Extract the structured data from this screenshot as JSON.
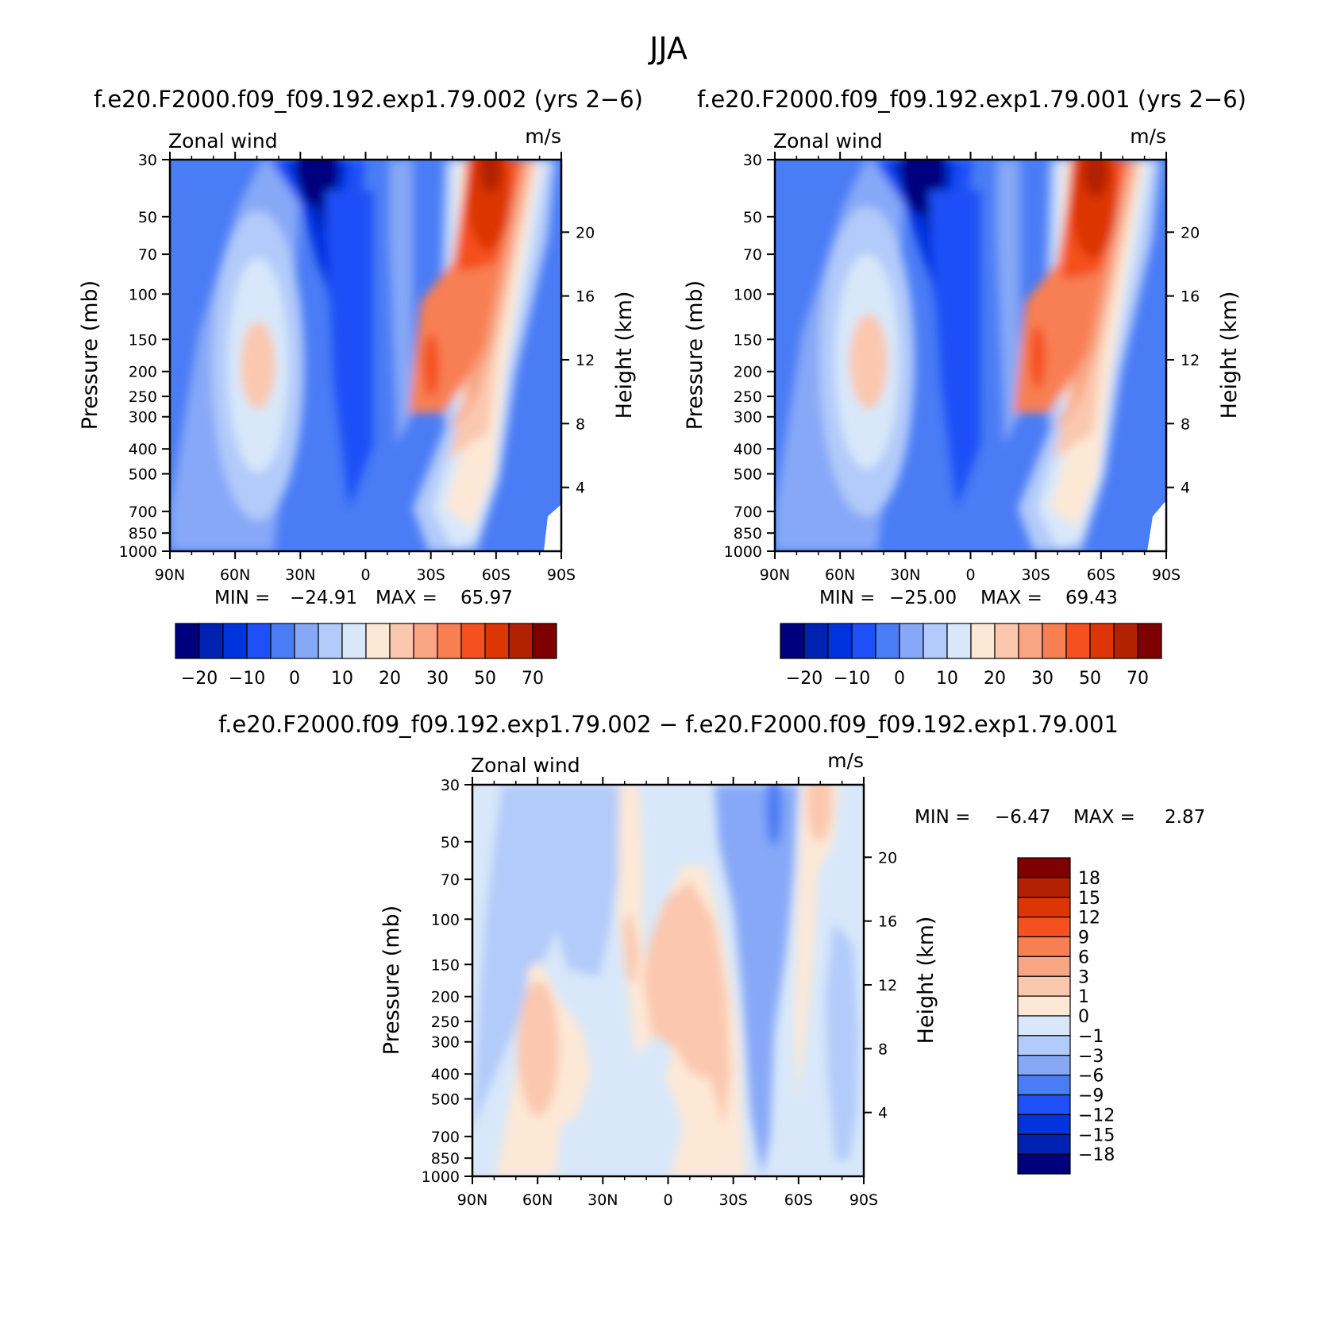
{
  "figure": {
    "title": "JJA",
    "diff_title": "f.e20.F2000.f09_f09.192.exp1.79.002 − f.e20.F2000.f09_f09.192.exp1.79.001",
    "variable": "Zonal wind",
    "units": "m/s"
  },
  "chart_data": [
    {
      "type": "heatmap",
      "name": "panel-1",
      "subtitle": "f.e20.F2000.f09_f09.192.exp1.79.002 (yrs 2−6)",
      "variable": "Zonal wind",
      "units": "m/s",
      "xlabel": "",
      "ylabel": "Pressure (mb)",
      "ylabel_right": "Height (km)",
      "x_ticks": [
        "90N",
        "60N",
        "30N",
        "0",
        "30S",
        "60S",
        "90S"
      ],
      "y_ticks": [
        30,
        50,
        70,
        100,
        150,
        200,
        250,
        300,
        400,
        500,
        700,
        850,
        1000
      ],
      "height_ticks": [
        4,
        8,
        12,
        16,
        20
      ],
      "ylim": [
        1000,
        30
      ],
      "y_scale": "log",
      "min_label": "MIN =",
      "min_value": "−24.91",
      "max_label": "MAX =",
      "max_value": "65.97",
      "colorbar": {
        "orientation": "horizontal",
        "labels": [
          "−20",
          "−10",
          "0",
          "10",
          "20",
          "30",
          "50",
          "70"
        ],
        "colors": [
          "#00007f",
          "#0022b3",
          "#0033dd",
          "#1f4ff7",
          "#4a7cf5",
          "#86a8f7",
          "#b3cbfa",
          "#d8e8fa",
          "#fde8d6",
          "#fbc7ae",
          "#f8a584",
          "#f87f52",
          "#f5501f",
          "#dc3506",
          "#b22202",
          "#7e0000"
        ]
      },
      "fields": [
        {
          "lat": 50,
          "p": 200,
          "level": 3,
          "sx": 18,
          "sy": 0.8
        },
        {
          "lat": 50,
          "p": 200,
          "level": 2,
          "sx": 12,
          "sy": 0.5
        },
        {
          "lat": 50,
          "p": 200,
          "level": 1,
          "sx": 6,
          "sy": 0.22
        },
        {
          "lat": -30,
          "p": 120,
          "level": 5,
          "sx": 20,
          "sy": 1.4
        },
        {
          "lat": -40,
          "p": 150,
          "level": 4,
          "sx": 14,
          "sy": 0.9
        },
        {
          "lat": -45,
          "p": 30,
          "level": 4,
          "sx": 12,
          "sy": 0.9
        },
        {
          "lat": -60,
          "p": 30,
          "level": 2,
          "sx": 5,
          "sy": 0.25
        }
      ]
    },
    {
      "type": "heatmap",
      "name": "panel-2",
      "subtitle": "f.e20.F2000.f09_f09.192.exp1.79.001 (yrs 2−6)",
      "variable": "Zonal wind",
      "units": "m/s",
      "xlabel": "",
      "ylabel": "Pressure (mb)",
      "ylabel_right": "Height (km)",
      "x_ticks": [
        "90N",
        "60N",
        "30N",
        "0",
        "30S",
        "60S",
        "90S"
      ],
      "y_ticks": [
        30,
        50,
        70,
        100,
        150,
        200,
        250,
        300,
        400,
        500,
        700,
        850,
        1000
      ],
      "height_ticks": [
        4,
        8,
        12,
        16,
        20
      ],
      "ylim": [
        1000,
        30
      ],
      "y_scale": "log",
      "min_label": "MIN =",
      "min_value": "−25.00",
      "max_label": "MAX =",
      "max_value": "69.43",
      "colorbar": {
        "orientation": "horizontal",
        "labels": [
          "−20",
          "−10",
          "0",
          "10",
          "20",
          "30",
          "50",
          "70"
        ],
        "colors": [
          "#00007f",
          "#0022b3",
          "#0033dd",
          "#1f4ff7",
          "#4a7cf5",
          "#86a8f7",
          "#b3cbfa",
          "#d8e8fa",
          "#fde8d6",
          "#fbc7ae",
          "#f8a584",
          "#f87f52",
          "#f5501f",
          "#dc3506",
          "#b22202",
          "#7e0000"
        ]
      }
    },
    {
      "type": "heatmap",
      "name": "panel-diff",
      "variable": "Zonal wind",
      "units": "m/s",
      "xlabel": "",
      "ylabel": "Pressure (mb)",
      "ylabel_right": "Height (km)",
      "x_ticks": [
        "90N",
        "60N",
        "30N",
        "0",
        "30S",
        "60S",
        "90S"
      ],
      "y_ticks": [
        30,
        50,
        70,
        100,
        150,
        200,
        250,
        300,
        400,
        500,
        700,
        850,
        1000
      ],
      "height_ticks": [
        4,
        8,
        12,
        16,
        20
      ],
      "ylim": [
        1000,
        30
      ],
      "y_scale": "log",
      "min_label": "MIN =",
      "min_value": "−6.47",
      "max_label": "MAX =",
      "max_value": "2.87",
      "colorbar": {
        "orientation": "vertical",
        "labels": [
          "18",
          "15",
          "12",
          "9",
          "6",
          "3",
          "1",
          "0",
          "−1",
          "−3",
          "−6",
          "−9",
          "−12",
          "−15",
          "−18"
        ],
        "colors": [
          "#7e0000",
          "#b22202",
          "#dc3506",
          "#f5501f",
          "#f87f52",
          "#f8a584",
          "#fbc7ae",
          "#fde8d6",
          "#d8e8fa",
          "#b3cbfa",
          "#86a8f7",
          "#4a7cf5",
          "#1f4ff7",
          "#0033dd",
          "#0022b3",
          "#00007f"
        ]
      }
    }
  ]
}
